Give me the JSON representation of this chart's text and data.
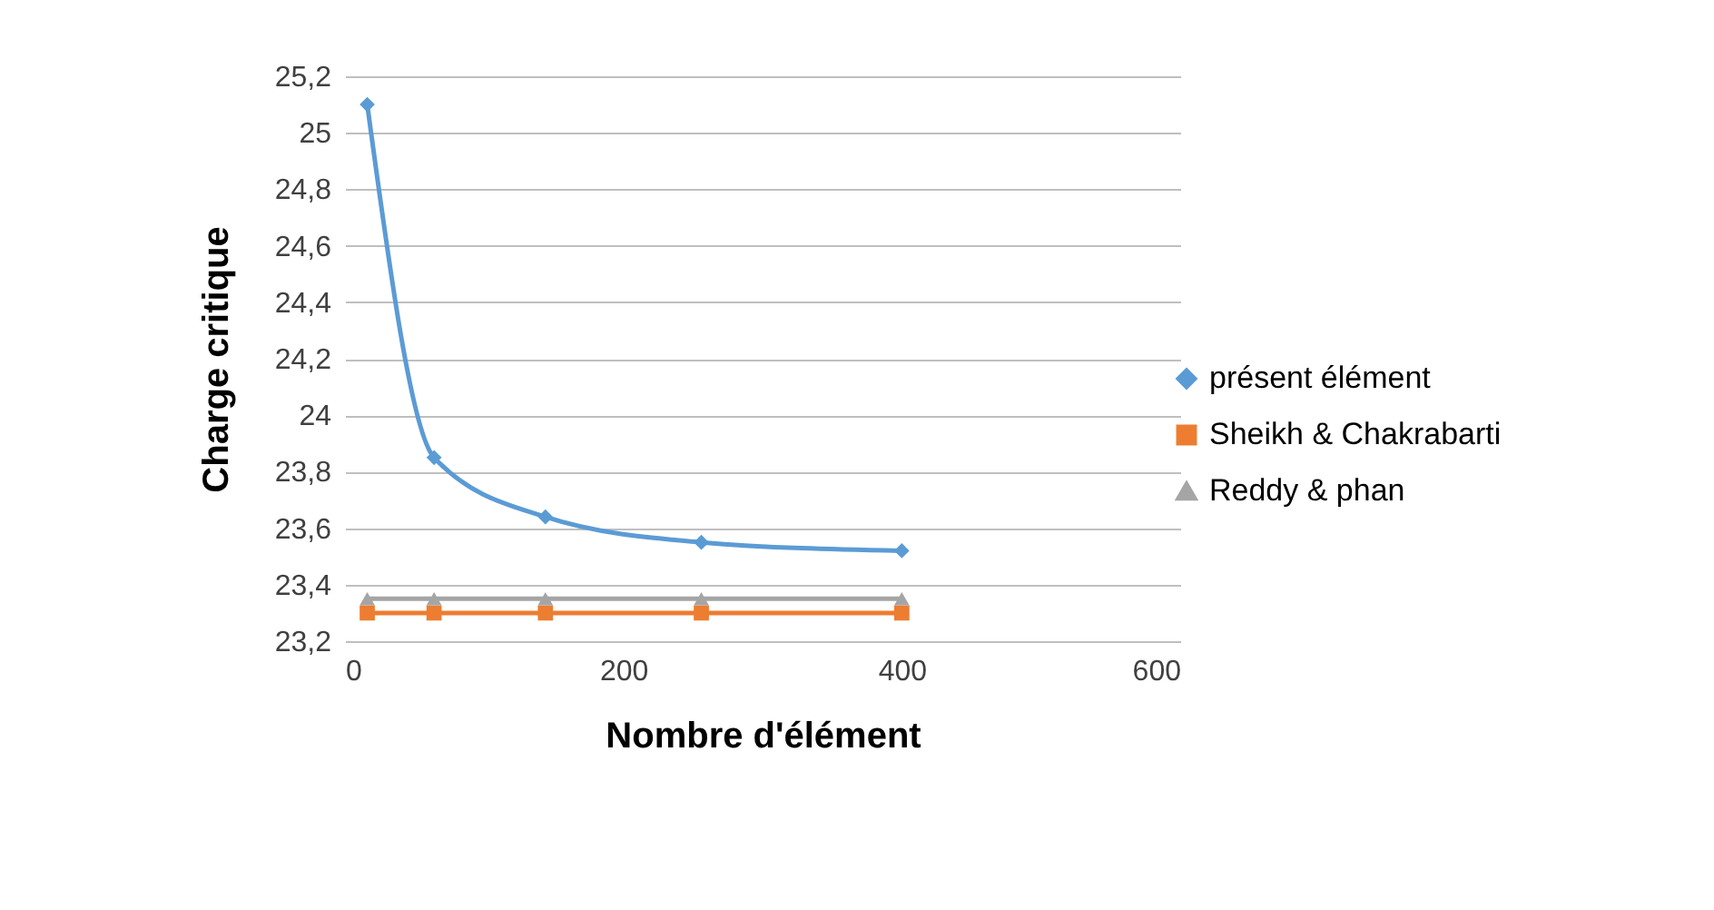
{
  "chart_data": {
    "type": "line",
    "xlabel": "Nombre d'élément",
    "ylabel": "Charge critique",
    "x": [
      16,
      64,
      144,
      256,
      400
    ],
    "series": [
      {
        "name": "présent élément",
        "color": "#5b9bd5",
        "marker": "diamond",
        "values": [
          25.1,
          23.85,
          23.64,
          23.55,
          23.52
        ]
      },
      {
        "name": "Sheikh & Chakrabarti",
        "color": "#ed7d31",
        "marker": "square",
        "values": [
          23.3,
          23.3,
          23.3,
          23.3,
          23.3
        ]
      },
      {
        "name": "Reddy & phan",
        "color": "#a5a5a5",
        "marker": "triangle",
        "values": [
          23.35,
          23.35,
          23.35,
          23.35,
          23.35
        ]
      }
    ],
    "xlim": [
      0,
      600
    ],
    "xticks": [
      0,
      200,
      400,
      600
    ],
    "ylim": [
      23.2,
      25.2
    ],
    "yticks": [
      {
        "value": 23.2,
        "label": "23,2"
      },
      {
        "value": 23.4,
        "label": "23,4"
      },
      {
        "value": 23.6,
        "label": "23,6"
      },
      {
        "value": 23.8,
        "label": "23,8"
      },
      {
        "value": 24,
        "label": "24"
      },
      {
        "value": 24.2,
        "label": "24,2"
      },
      {
        "value": 24.4,
        "label": "24,4"
      },
      {
        "value": 24.6,
        "label": "24,6"
      },
      {
        "value": 24.8,
        "label": "24,8"
      },
      {
        "value": 25,
        "label": "25"
      },
      {
        "value": 25.2,
        "label": "25,2"
      }
    ],
    "grid": "y",
    "legend": "right"
  }
}
